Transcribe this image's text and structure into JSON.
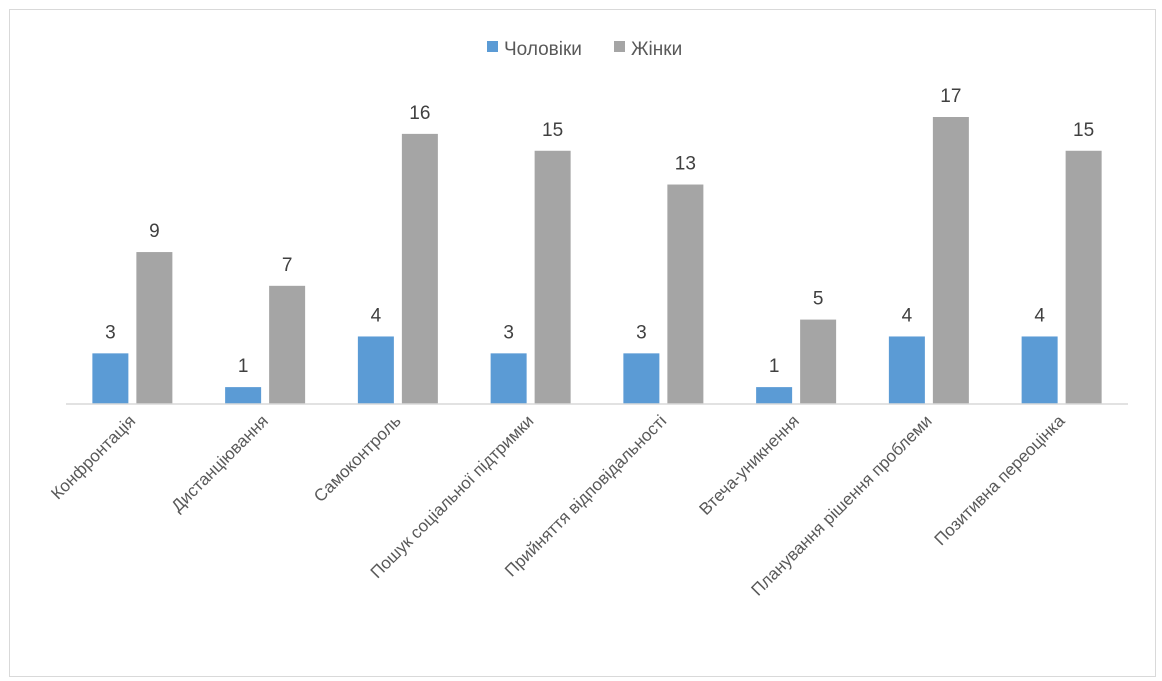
{
  "chart_data": {
    "type": "bar",
    "categories": [
      "Конфронтація",
      "Дистанціювання",
      "Самоконтроль",
      "Пошук соціальної підтримки",
      "Прийняття відповідальності",
      "Втеча-уникнення",
      "Планування рішення проблеми",
      "Позитивна переоцінка"
    ],
    "series": [
      {
        "name": "Чоловіки",
        "color": "#5b9bd5",
        "values": [
          3,
          1,
          4,
          3,
          3,
          1,
          4,
          4
        ]
      },
      {
        "name": "Жінки",
        "color": "#a5a5a5",
        "values": [
          9,
          7,
          16,
          15,
          13,
          5,
          17,
          15
        ]
      }
    ],
    "title": "",
    "xlabel": "",
    "ylabel": "",
    "ylim": [
      0,
      17
    ],
    "grid": false,
    "legend": "top",
    "data_labels": true
  }
}
